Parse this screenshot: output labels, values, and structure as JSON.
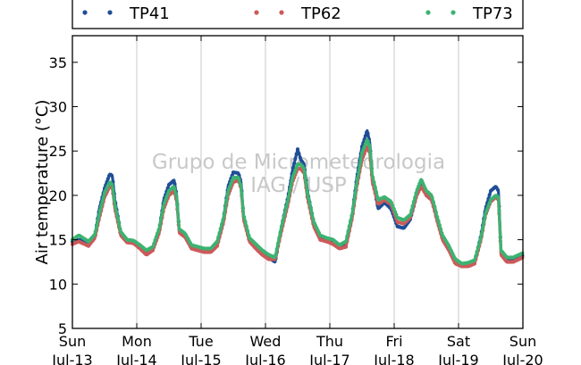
{
  "chart_data": {
    "type": "line",
    "ylabel": "Air temperature (°C)",
    "ylim": [
      5,
      38
    ],
    "yticks": [
      5,
      10,
      15,
      20,
      25,
      30,
      35
    ],
    "xlim": [
      0,
      7
    ],
    "xticks": [
      {
        "day": "Sun",
        "date": "Jul-13"
      },
      {
        "day": "Mon",
        "date": "Jul-14"
      },
      {
        "day": "Tue",
        "date": "Jul-15"
      },
      {
        "day": "Wed",
        "date": "Jul-16"
      },
      {
        "day": "Thu",
        "date": "Jul-17"
      },
      {
        "day": "Fri",
        "date": "Jul-18"
      },
      {
        "day": "Sat",
        "date": "Jul-19"
      },
      {
        "day": "Sun",
        "date": "Jul-20"
      }
    ],
    "grid": "vertical",
    "legend_position": "top",
    "watermark": [
      "Grupo de Micrometeorologia",
      "IAG / USP"
    ],
    "x_unit": "days from Jul-13 00:00",
    "series": [
      {
        "name": "TP41",
        "color": "#1f4e96",
        "x": [
          0.0,
          0.1,
          0.25,
          0.35,
          0.42,
          0.5,
          0.58,
          0.62,
          0.66,
          0.75,
          0.85,
          0.95,
          1.05,
          1.15,
          1.25,
          1.35,
          1.42,
          1.5,
          1.58,
          1.62,
          1.66,
          1.75,
          1.85,
          1.95,
          2.05,
          2.15,
          2.25,
          2.35,
          2.42,
          2.5,
          2.58,
          2.62,
          2.66,
          2.75,
          2.85,
          2.95,
          3.05,
          3.15,
          3.25,
          3.35,
          3.42,
          3.5,
          3.55,
          3.6,
          3.65,
          3.75,
          3.85,
          3.95,
          4.05,
          4.15,
          4.25,
          4.35,
          4.42,
          4.5,
          4.58,
          4.62,
          4.66,
          4.75,
          4.85,
          4.95,
          5.05,
          5.15,
          5.25,
          5.35,
          5.42,
          5.5,
          5.58,
          5.62,
          5.66,
          5.75,
          5.85,
          5.95,
          6.05,
          6.15,
          6.25,
          6.35,
          6.42,
          6.5,
          6.58,
          6.62,
          6.66,
          6.75,
          6.85,
          7.0
        ],
        "y": [
          14.8,
          15.0,
          14.6,
          15.5,
          18.5,
          20.8,
          22.4,
          22.2,
          19.5,
          15.8,
          14.8,
          14.8,
          14.2,
          13.5,
          14.0,
          16.2,
          19.5,
          21.2,
          21.7,
          20.0,
          16.0,
          15.5,
          14.2,
          14.0,
          13.8,
          13.8,
          14.6,
          17.5,
          21.0,
          22.6,
          22.5,
          21.5,
          17.5,
          15.0,
          14.3,
          13.5,
          13.0,
          12.5,
          16.5,
          19.8,
          22.8,
          25.2,
          24.0,
          23.5,
          20.5,
          17.0,
          15.3,
          15.0,
          14.8,
          14.2,
          14.5,
          18.0,
          22.0,
          25.5,
          27.3,
          26.0,
          22.0,
          18.5,
          19.2,
          18.5,
          16.5,
          16.3,
          17.3,
          20.0,
          21.5,
          20.0,
          19.5,
          18.5,
          17.5,
          15.2,
          14.0,
          12.5,
          12.0,
          12.2,
          12.5,
          15.5,
          18.5,
          20.5,
          21.0,
          20.5,
          13.5,
          12.8,
          12.8,
          13.2
        ]
      },
      {
        "name": "TP62",
        "color": "#cc5a5a",
        "x": [
          0.0,
          0.1,
          0.25,
          0.35,
          0.42,
          0.5,
          0.58,
          0.62,
          0.66,
          0.75,
          0.85,
          0.95,
          1.05,
          1.15,
          1.25,
          1.35,
          1.42,
          1.5,
          1.58,
          1.62,
          1.66,
          1.75,
          1.85,
          1.95,
          2.05,
          2.15,
          2.25,
          2.35,
          2.42,
          2.5,
          2.58,
          2.62,
          2.66,
          2.75,
          2.85,
          2.95,
          3.05,
          3.15,
          3.25,
          3.35,
          3.42,
          3.5,
          3.55,
          3.6,
          3.65,
          3.75,
          3.85,
          3.95,
          4.05,
          4.15,
          4.25,
          4.35,
          4.42,
          4.5,
          4.58,
          4.62,
          4.66,
          4.75,
          4.85,
          4.95,
          5.05,
          5.15,
          5.25,
          5.35,
          5.42,
          5.5,
          5.58,
          5.62,
          5.66,
          5.75,
          5.85,
          5.95,
          6.05,
          6.15,
          6.25,
          6.35,
          6.42,
          6.5,
          6.58,
          6.62,
          6.66,
          6.75,
          6.85,
          7.0
        ],
        "y": [
          14.5,
          14.8,
          14.3,
          15.2,
          17.5,
          19.8,
          21.0,
          20.8,
          18.5,
          15.5,
          14.7,
          14.6,
          14.0,
          13.3,
          13.8,
          15.8,
          18.5,
          20.0,
          20.5,
          19.3,
          15.8,
          15.3,
          14.0,
          13.8,
          13.6,
          13.6,
          14.3,
          17.0,
          20.0,
          21.5,
          21.7,
          20.8,
          17.3,
          14.8,
          14.0,
          13.3,
          12.8,
          12.8,
          16.0,
          19.0,
          21.5,
          23.0,
          23.0,
          22.5,
          19.8,
          16.5,
          15.0,
          14.8,
          14.5,
          14.0,
          14.2,
          17.5,
          21.0,
          24.0,
          25.5,
          24.8,
          21.5,
          19.0,
          19.5,
          19.0,
          17.0,
          16.8,
          17.5,
          20.0,
          21.0,
          20.0,
          19.5,
          18.5,
          17.3,
          15.0,
          13.8,
          12.3,
          12.0,
          12.0,
          12.3,
          15.0,
          17.8,
          19.3,
          19.8,
          19.5,
          13.3,
          12.5,
          12.5,
          13.0
        ]
      },
      {
        "name": "TP73",
        "color": "#3cb371",
        "x": [
          0.0,
          0.1,
          0.25,
          0.35,
          0.42,
          0.5,
          0.58,
          0.62,
          0.66,
          0.75,
          0.85,
          0.95,
          1.05,
          1.15,
          1.25,
          1.35,
          1.42,
          1.5,
          1.58,
          1.62,
          1.66,
          1.75,
          1.85,
          1.95,
          2.05,
          2.15,
          2.25,
          2.35,
          2.42,
          2.5,
          2.58,
          2.62,
          2.66,
          2.75,
          2.85,
          2.95,
          3.05,
          3.15,
          3.25,
          3.35,
          3.42,
          3.5,
          3.55,
          3.6,
          3.65,
          3.75,
          3.85,
          3.95,
          4.05,
          4.15,
          4.25,
          4.35,
          4.42,
          4.5,
          4.58,
          4.62,
          4.66,
          4.75,
          4.85,
          4.95,
          5.05,
          5.15,
          5.25,
          5.35,
          5.42,
          5.5,
          5.58,
          5.62,
          5.66,
          5.75,
          5.85,
          5.95,
          6.05,
          6.15,
          6.25,
          6.35,
          6.42,
          6.5,
          6.58,
          6.62,
          6.66,
          6.75,
          6.85,
          7.0
        ],
        "y": [
          15.0,
          15.5,
          14.8,
          15.6,
          18.0,
          20.3,
          21.5,
          21.2,
          19.0,
          15.9,
          15.0,
          14.9,
          14.4,
          13.8,
          14.2,
          16.3,
          19.0,
          20.5,
          21.0,
          19.8,
          16.2,
          15.7,
          14.4,
          14.2,
          14.0,
          14.0,
          14.8,
          17.5,
          20.5,
          22.0,
          22.0,
          21.0,
          17.8,
          15.2,
          14.5,
          13.8,
          13.3,
          13.0,
          16.5,
          19.5,
          22.0,
          23.5,
          23.5,
          23.0,
          20.3,
          17.0,
          15.5,
          15.2,
          15.0,
          14.4,
          14.8,
          18.0,
          21.5,
          24.8,
          26.3,
          25.5,
          22.3,
          19.5,
          19.8,
          19.3,
          17.5,
          17.2,
          17.8,
          20.5,
          21.8,
          20.5,
          20.0,
          19.0,
          17.8,
          15.5,
          14.3,
          12.8,
          12.3,
          12.4,
          12.7,
          15.3,
          18.0,
          19.5,
          20.0,
          19.8,
          13.8,
          13.0,
          13.0,
          13.5
        ]
      }
    ]
  }
}
